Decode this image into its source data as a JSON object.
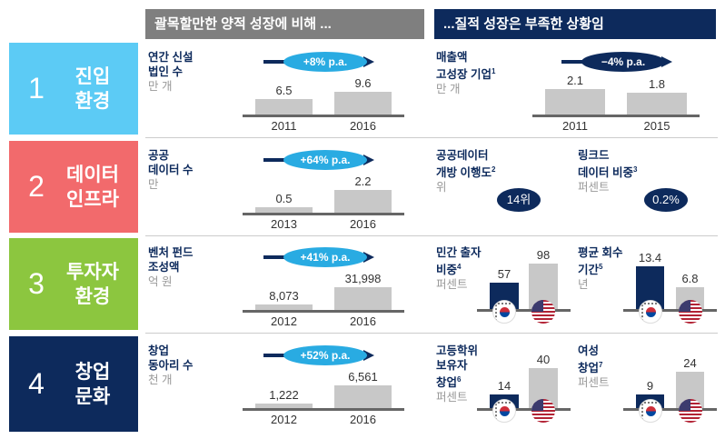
{
  "headers": {
    "left": "괄목할만한 양적 성장에 비해 ...",
    "right": "...질적 성장은 부족한 상황임"
  },
  "colors": {
    "row1": "#5ccbf5",
    "row2": "#f26a6c",
    "row3": "#8cc63f",
    "row4": "#0d2a5c",
    "navy": "#0d2a5c",
    "gray_bar": "#c8c8c8",
    "header_gray": "#7f7f7f"
  },
  "rows": [
    {
      "num": "1",
      "title1": "진입",
      "title2": "환경",
      "left": {
        "l1": "연간 신설",
        "l2": "법인 수",
        "unit": "만 개",
        "growth": "+8% p.a.",
        "years": [
          "2011",
          "2016"
        ],
        "values": [
          6.5,
          9.6
        ],
        "labels": [
          "6.5",
          "9.6"
        ]
      },
      "right": {
        "l1": "매출액",
        "l2": "고성장 기업",
        "sup": "1",
        "unit": "만 개",
        "growth": "−4% p.a.",
        "years": [
          "2011",
          "2015"
        ],
        "values": [
          2.1,
          1.8
        ],
        "labels": [
          "2.1",
          "1.8"
        ]
      }
    },
    {
      "num": "2",
      "title1": "데이터",
      "title2": "인프라",
      "left": {
        "l1": "공공",
        "l2": "데이터 수",
        "unit": "만",
        "growth": "+64% p.a.",
        "years": [
          "2013",
          "2016"
        ],
        "values": [
          0.5,
          2.2
        ],
        "labels": [
          "0.5",
          "2.2"
        ]
      },
      "right_a": {
        "l1": "공공데이터",
        "l2": "개방 이행도",
        "sup": "2",
        "unit": "위",
        "value": "14위"
      },
      "right_b": {
        "l1": "링크드",
        "l2": "데이터 비중",
        "sup": "3",
        "unit": "퍼센트",
        "value": "0.2%"
      }
    },
    {
      "num": "3",
      "title1": "투자자",
      "title2": "환경",
      "left": {
        "l1": "벤처 펀드",
        "l2": "조성액",
        "unit": "억 원",
        "growth": "+41% p.a.",
        "years": [
          "2012",
          "2016"
        ],
        "values": [
          8073,
          31998
        ],
        "labels": [
          "8,073",
          "31,998"
        ]
      },
      "right_a": {
        "l1": "민간 출자",
        "l2": "비중",
        "sup": "4",
        "unit": "퍼센트",
        "values": [
          57,
          98
        ],
        "labels": [
          "57",
          "98"
        ]
      },
      "right_b": {
        "l1": "평균 회수",
        "l2": "기간",
        "sup": "5",
        "unit": "년",
        "values": [
          13.4,
          6.8
        ],
        "labels": [
          "13.4",
          "6.8"
        ]
      }
    },
    {
      "num": "4",
      "title1": "창업",
      "title2": "문화",
      "left": {
        "l1": "창업",
        "l2": "동아리 수",
        "unit": "천 개",
        "growth": "+52% p.a.",
        "years": [
          "2012",
          "2016"
        ],
        "values": [
          1222,
          6561
        ],
        "labels": [
          "1,222",
          "6,561"
        ]
      },
      "right_a": {
        "l1": "고등학위",
        "l2": "보유자",
        "l3": "창업",
        "sup": "6",
        "unit": "퍼센트",
        "values": [
          14,
          40
        ],
        "labels": [
          "14",
          "40"
        ]
      },
      "right_b": {
        "l1": "여성",
        "l2": "창업",
        "sup": "7",
        "unit": "퍼센트",
        "values": [
          9,
          24
        ],
        "labels": [
          "9",
          "24"
        ]
      }
    }
  ]
}
